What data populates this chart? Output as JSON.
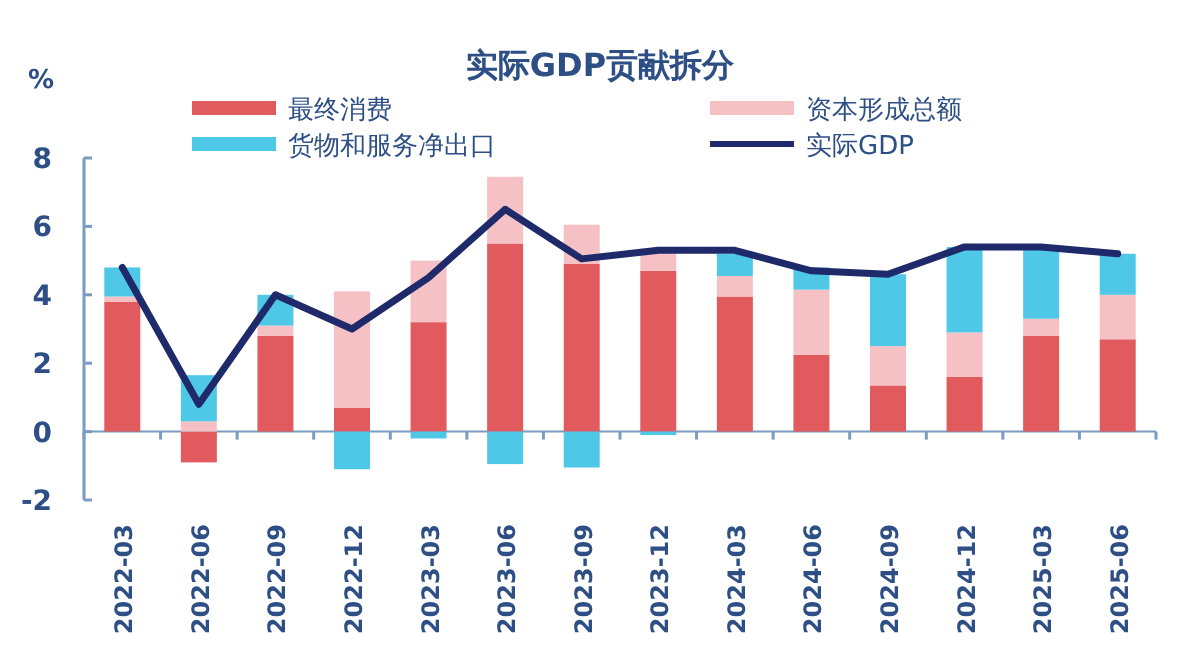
{
  "chart_data": {
    "type": "bar",
    "stacked": true,
    "title": "实际GDP贡献拆分",
    "ylabel": "%",
    "legend": "top",
    "categories": [
      "2022-03",
      "2022-06",
      "2022-09",
      "2022-12",
      "2023-03",
      "2023-06",
      "2023-09",
      "2023-12",
      "2024-03",
      "2024-06",
      "2024-09",
      "2024-12",
      "2025-03",
      "2025-06"
    ],
    "series": [
      {
        "name": "最终消费",
        "color": "#e05a5e",
        "values": [
          3.8,
          -0.9,
          2.8,
          0.7,
          3.2,
          5.5,
          4.9,
          4.7,
          3.95,
          2.25,
          1.35,
          1.6,
          2.8,
          2.7
        ]
      },
      {
        "name": "资本形成总额",
        "color": "#f5c1c4",
        "values": [
          0.15,
          0.3,
          0.3,
          3.4,
          1.8,
          1.95,
          1.15,
          0.65,
          0.6,
          1.9,
          1.15,
          1.3,
          0.5,
          1.3
        ]
      },
      {
        "name": "货物和服务净出口",
        "color": "#4fc8e8",
        "values": [
          0.85,
          1.35,
          0.9,
          -1.1,
          -0.2,
          -0.95,
          -1.05,
          -0.1,
          0.65,
          0.65,
          2.1,
          2.5,
          2.05,
          1.2
        ]
      },
      {
        "name": "实际GDP",
        "type": "line",
        "color": "#1f2a6b",
        "values": [
          4.8,
          0.8,
          4.0,
          3.0,
          4.5,
          6.5,
          5.05,
          5.3,
          5.3,
          4.7,
          4.6,
          5.4,
          5.4,
          5.2
        ]
      }
    ],
    "ref_lines": [
      {
        "axis": "y",
        "value": 0,
        "color": "#7a9cc0"
      }
    ],
    "ylim": [
      -2,
      8
    ],
    "yticks": [
      -2,
      0,
      2,
      4,
      6,
      8
    ],
    "grid": false
  }
}
